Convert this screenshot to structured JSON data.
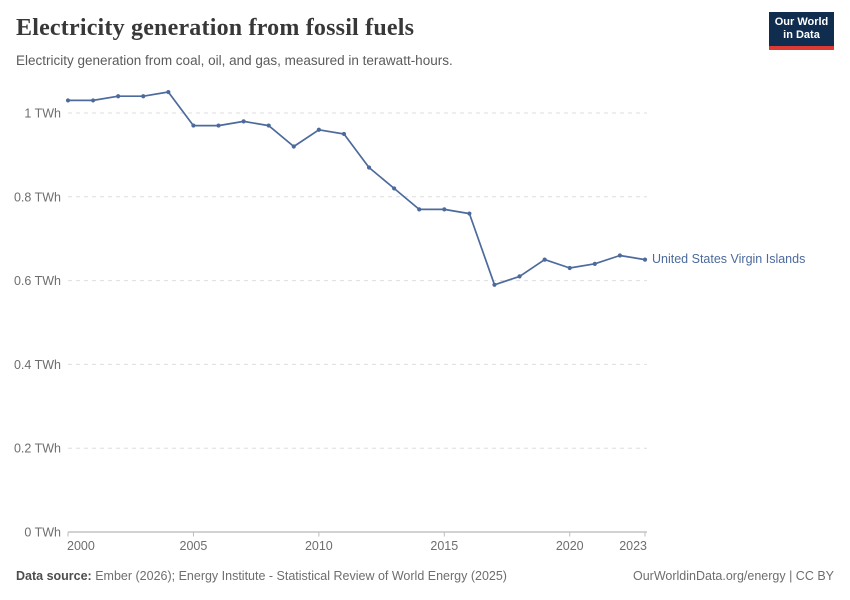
{
  "header": {
    "title": "Electricity generation from fossil fuels",
    "subtitle": "Electricity generation from coal, oil, and gas, measured in terawatt-hours."
  },
  "logo": {
    "line1": "Our World",
    "line2": "in Data"
  },
  "chart_data": {
    "type": "line",
    "title": "Electricity generation from fossil fuels",
    "entity": "United States Virgin Islands",
    "unit": "TWh",
    "x": [
      2000,
      2001,
      2002,
      2003,
      2004,
      2005,
      2006,
      2007,
      2008,
      2009,
      2010,
      2011,
      2012,
      2013,
      2014,
      2015,
      2016,
      2017,
      2018,
      2019,
      2020,
      2021,
      2022,
      2023
    ],
    "values": [
      1.03,
      1.03,
      1.04,
      1.04,
      1.05,
      0.97,
      0.97,
      0.98,
      0.97,
      0.92,
      0.96,
      0.95,
      0.87,
      0.82,
      0.77,
      0.77,
      0.76,
      0.59,
      0.61,
      0.65,
      0.63,
      0.64,
      0.66,
      0.65
    ],
    "xticks": [
      2000,
      2005,
      2010,
      2015,
      2020,
      2023
    ],
    "yticks": [
      {
        "v": 0,
        "label": "0 TWh"
      },
      {
        "v": 0.2,
        "label": "0.2 TWh"
      },
      {
        "v": 0.4,
        "label": "0.4 TWh"
      },
      {
        "v": 0.6,
        "label": "0.6 TWh"
      },
      {
        "v": 0.8,
        "label": "0.8 TWh"
      },
      {
        "v": 1,
        "label": "1 TWh"
      }
    ],
    "xlim": [
      2000,
      2023
    ],
    "ylim": [
      0,
      1.05
    ],
    "grid": true,
    "legend_position": "right-of-line-end",
    "colors": {
      "line": "#4c6a9c",
      "grid": "#dedede",
      "axis": "#a6a6a6",
      "tick": "#bdbdbd",
      "tick_text": "#6e6e6e"
    }
  },
  "footer": {
    "source_label": "Data source:",
    "source_text": " Ember (2026); Energy Institute - Statistical Review of World Energy (2025)",
    "rights": "OurWorldinData.org/energy | CC BY"
  }
}
